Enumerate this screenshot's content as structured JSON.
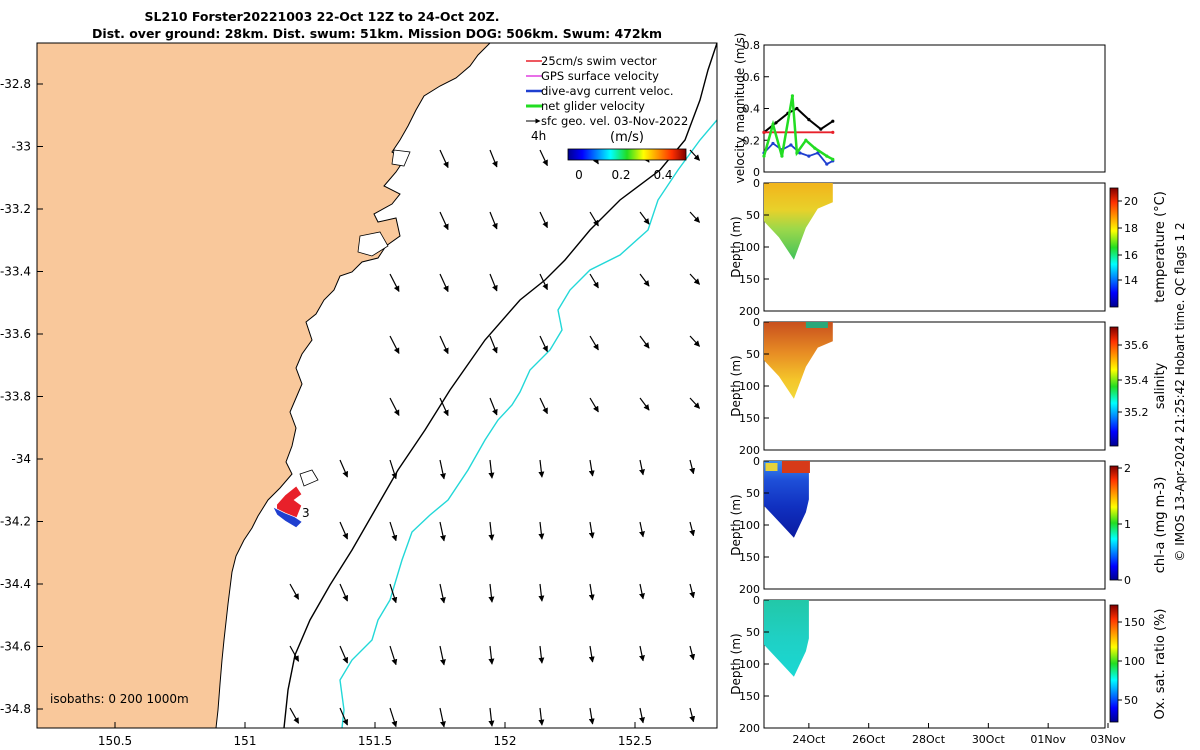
{
  "title": {
    "line1": "SL210 Forster20221003 22-Oct 12Z to 24-Oct 20Z.",
    "line2": "Dist. over ground: 28km. Dist. swum: 51km. Mission DOG: 506km. Swum: 472km"
  },
  "map": {
    "x_ticks": [
      "150.5",
      "151",
      "151.5",
      "152",
      "152.5"
    ],
    "y_ticks": [
      "-32.8",
      "-33",
      "-33.2",
      "-33.4",
      "-33.6",
      "-33.8",
      "-34",
      "-34.2",
      "-34.4",
      "-34.6",
      "-34.8"
    ],
    "legend": [
      {
        "label": "25cm/s swim vector",
        "color": "#e8202a"
      },
      {
        "label": "GPS surface velocity",
        "color": "#e040e0"
      },
      {
        "label": "dive-avg current veloc.",
        "color": "#1f3fd0"
      },
      {
        "label": "net glider velocity",
        "color": "#22dd22"
      },
      {
        "label": "sfc geo. vel. 03-Nov-2022",
        "color": "#000000"
      }
    ],
    "hours_label": "4h",
    "colorbar_unit": "(m/s)",
    "colorbar_ticks": [
      "0",
      "0.2",
      "0.4"
    ],
    "isobaths_label": "isobaths: 0   200  1000m",
    "track_end_label": "3",
    "colors": {
      "land": "#f9c89b",
      "sea": "#ffffff",
      "isobath_200": "#000000",
      "isobath_1000": "#22d8d8"
    }
  },
  "chart_data": [
    {
      "type": "line",
      "title": "",
      "ylabel": "velocity magnitude (m/s)",
      "ylim": [
        0,
        0.8
      ],
      "yticks": [
        "0",
        "0.2",
        "0.4",
        "0.6",
        "0.8"
      ],
      "xticks": [
        "24Oct",
        "26Oct",
        "28Oct",
        "30Oct",
        "01Nov",
        "03Nov"
      ],
      "series": [
        {
          "color": "#000000",
          "x": [
            22.5,
            22.9,
            23.3,
            23.6,
            24.0,
            24.4,
            24.8
          ],
          "values": [
            0.25,
            0.31,
            0.37,
            0.4,
            0.33,
            0.27,
            0.32
          ]
        },
        {
          "color": "#e8202a",
          "x": [
            22.5,
            24.8
          ],
          "values": [
            0.25,
            0.25
          ]
        },
        {
          "color": "#1f3fd0",
          "x": [
            22.5,
            22.8,
            23.1,
            23.4,
            23.7,
            24.0,
            24.3,
            24.6,
            24.8
          ],
          "values": [
            0.12,
            0.18,
            0.14,
            0.17,
            0.12,
            0.1,
            0.12,
            0.05,
            0.07
          ]
        },
        {
          "color": "#22dd22",
          "x": [
            22.5,
            22.8,
            23.1,
            23.45,
            23.6,
            23.9,
            24.2,
            24.6,
            24.8
          ],
          "values": [
            0.1,
            0.3,
            0.1,
            0.48,
            0.12,
            0.2,
            0.15,
            0.1,
            0.08
          ]
        }
      ]
    },
    {
      "type": "heatmap",
      "ylabel": "Depth (m)",
      "yticks": [
        "0",
        "50",
        "100",
        "150",
        "200"
      ],
      "colorbar_label": "temperature (°C)",
      "colorbar_ticks": [
        "14",
        "16",
        "18",
        "20"
      ],
      "depth_profile": {
        "x": [
          22.5,
          23.0,
          23.5,
          23.9,
          24.3,
          24.8
        ],
        "max_depth": [
          60,
          85,
          120,
          70,
          40,
          30
        ]
      }
    },
    {
      "type": "heatmap",
      "ylabel": "Depth (m)",
      "yticks": [
        "0",
        "50",
        "100",
        "150",
        "200"
      ],
      "colorbar_label": "salinity",
      "colorbar_ticks": [
        "35.2",
        "35.4",
        "35.6"
      ],
      "depth_profile": {
        "x": [
          22.5,
          23.0,
          23.5,
          23.9,
          24.3,
          24.8
        ],
        "max_depth": [
          60,
          85,
          120,
          70,
          40,
          30
        ]
      }
    },
    {
      "type": "heatmap",
      "ylabel": "Depth (m)",
      "yticks": [
        "0",
        "50",
        "100",
        "150",
        "200"
      ],
      "colorbar_label": "chl-a (mg m-3)",
      "colorbar_ticks": [
        "0",
        "1",
        "2"
      ],
      "depth_profile": {
        "x": [
          22.5,
          23.0,
          23.5,
          23.9,
          24.0
        ],
        "max_depth": [
          70,
          95,
          120,
          80,
          60
        ]
      }
    },
    {
      "type": "heatmap",
      "ylabel": "Depth (m)",
      "yticks": [
        "0",
        "50",
        "100",
        "150",
        "200"
      ],
      "colorbar_label": "Ox. sat. ratio (%)",
      "colorbar_ticks": [
        "50",
        "100",
        "150"
      ],
      "depth_profile": {
        "x": [
          22.5,
          23.0,
          23.5,
          23.9,
          24.0
        ],
        "max_depth": [
          70,
          95,
          120,
          80,
          60
        ]
      }
    }
  ],
  "footer_label": "© IMOS 13-Apr-2024 21:25:42 Hobart time. QC flags 1  2"
}
